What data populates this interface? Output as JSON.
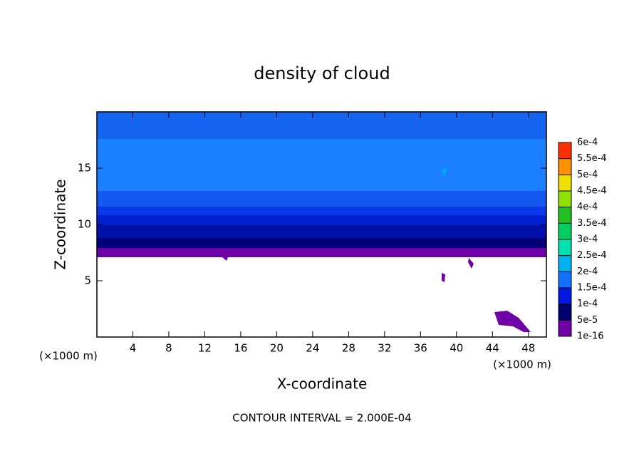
{
  "chart_data": {
    "type": "contour",
    "title": "density of cloud",
    "x_label": "X-coordinate",
    "y_label": "Z-coordinate",
    "x_unit": "(×1000 m)",
    "y_unit": "(×1000 m)",
    "footer": "CONTOUR INTERVAL = 2.000E-04",
    "xlim": [
      0,
      50
    ],
    "ylim": [
      0,
      20
    ],
    "xticks": [
      4,
      8,
      12,
      16,
      20,
      24,
      28,
      32,
      36,
      40,
      44,
      48
    ],
    "yticks": [
      5,
      10,
      15
    ],
    "colorbar": {
      "ticks": [
        {
          "value": 1e-16,
          "label": "1e-16"
        },
        {
          "value": 5e-05,
          "label": "5e-5"
        },
        {
          "value": 0.0001,
          "label": "1e-4"
        },
        {
          "value": 0.00015,
          "label": "1.5e-4"
        },
        {
          "value": 0.0002,
          "label": "2e-4"
        },
        {
          "value": 0.00025,
          "label": "2.5e-4"
        },
        {
          "value": 0.0003,
          "label": "3e-4"
        },
        {
          "value": 0.00035,
          "label": "3.5e-4"
        },
        {
          "value": 0.0004,
          "label": "4e-4"
        },
        {
          "value": 0.00045,
          "label": "4.5e-4"
        },
        {
          "value": 0.0005,
          "label": "5e-4"
        },
        {
          "value": 0.00055,
          "label": "5.5e-4"
        },
        {
          "value": 0.0006,
          "label": "6e-4"
        }
      ],
      "colors": [
        "#7000a8",
        "#000070",
        "#0018e0",
        "#1070ff",
        "#00b0f0",
        "#00e0b0",
        "#00d060",
        "#20c020",
        "#90e000",
        "#f0e000",
        "#ff9000",
        "#ff3000",
        "#ff8080"
      ]
    }
  }
}
